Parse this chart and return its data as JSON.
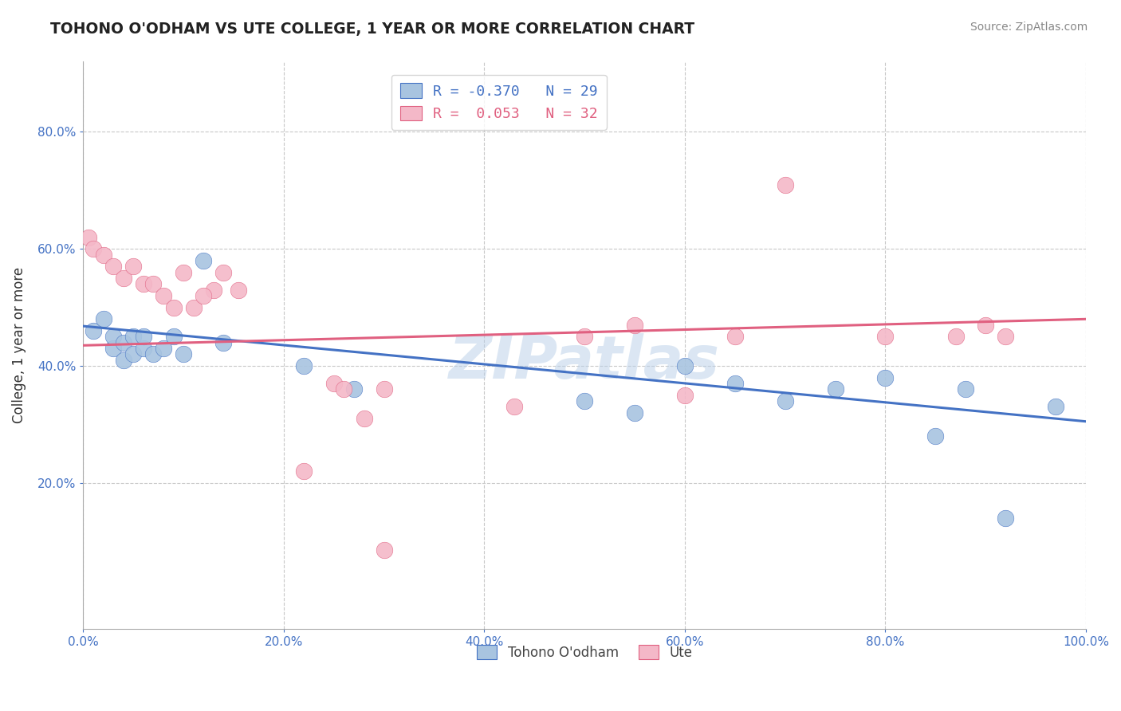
{
  "title": "TOHONO O'ODHAM VS UTE COLLEGE, 1 YEAR OR MORE CORRELATION CHART",
  "source_text": "Source: ZipAtlas.com",
  "ylabel": "College, 1 year or more",
  "xlim": [
    0.0,
    1.0
  ],
  "ylim": [
    -0.05,
    0.92
  ],
  "xtick_labels": [
    "0.0%",
    "20.0%",
    "40.0%",
    "60.0%",
    "80.0%",
    "100.0%"
  ],
  "xtick_vals": [
    0.0,
    0.2,
    0.4,
    0.6,
    0.8,
    1.0
  ],
  "ytick_labels": [
    "20.0%",
    "40.0%",
    "60.0%",
    "80.0%"
  ],
  "ytick_vals": [
    0.2,
    0.4,
    0.6,
    0.8
  ],
  "legend_blue_R": "-0.370",
  "legend_blue_N": "29",
  "legend_pink_R": "0.053",
  "legend_pink_N": "32",
  "blue_scatter_x": [
    0.01,
    0.02,
    0.03,
    0.03,
    0.04,
    0.04,
    0.05,
    0.05,
    0.06,
    0.06,
    0.07,
    0.08,
    0.09,
    0.1,
    0.12,
    0.14,
    0.22,
    0.27,
    0.5,
    0.55,
    0.6,
    0.65,
    0.7,
    0.75,
    0.8,
    0.85,
    0.88,
    0.92,
    0.97
  ],
  "blue_scatter_y": [
    0.46,
    0.48,
    0.43,
    0.45,
    0.41,
    0.44,
    0.42,
    0.45,
    0.43,
    0.45,
    0.42,
    0.43,
    0.45,
    0.42,
    0.58,
    0.44,
    0.4,
    0.36,
    0.34,
    0.32,
    0.4,
    0.37,
    0.34,
    0.36,
    0.38,
    0.28,
    0.36,
    0.14,
    0.33
  ],
  "pink_scatter_x": [
    0.005,
    0.01,
    0.02,
    0.03,
    0.04,
    0.05,
    0.06,
    0.07,
    0.08,
    0.09,
    0.1,
    0.11,
    0.13,
    0.14,
    0.22,
    0.25,
    0.26,
    0.28,
    0.3,
    0.43,
    0.5,
    0.55,
    0.6,
    0.65,
    0.7,
    0.8,
    0.87,
    0.9,
    0.92,
    0.12,
    0.155,
    0.3
  ],
  "pink_scatter_y": [
    0.62,
    0.6,
    0.59,
    0.57,
    0.55,
    0.57,
    0.54,
    0.54,
    0.52,
    0.5,
    0.56,
    0.5,
    0.53,
    0.56,
    0.22,
    0.37,
    0.36,
    0.31,
    0.36,
    0.33,
    0.45,
    0.47,
    0.35,
    0.45,
    0.71,
    0.45,
    0.45,
    0.47,
    0.45,
    0.52,
    0.53,
    0.085
  ],
  "blue_line_x": [
    0.0,
    1.0
  ],
  "blue_line_y": [
    0.468,
    0.305
  ],
  "pink_line_x": [
    0.0,
    1.0
  ],
  "pink_line_y": [
    0.435,
    0.48
  ],
  "watermark": "ZIPatlas",
  "blue_color": "#a8c4e0",
  "pink_color": "#f4b8c8",
  "blue_line_color": "#4472c4",
  "pink_line_color": "#e06080",
  "grid_color": "#c8c8c8",
  "title_color": "#222222",
  "axis_label_color": "#4472c4",
  "background_color": "#ffffff"
}
